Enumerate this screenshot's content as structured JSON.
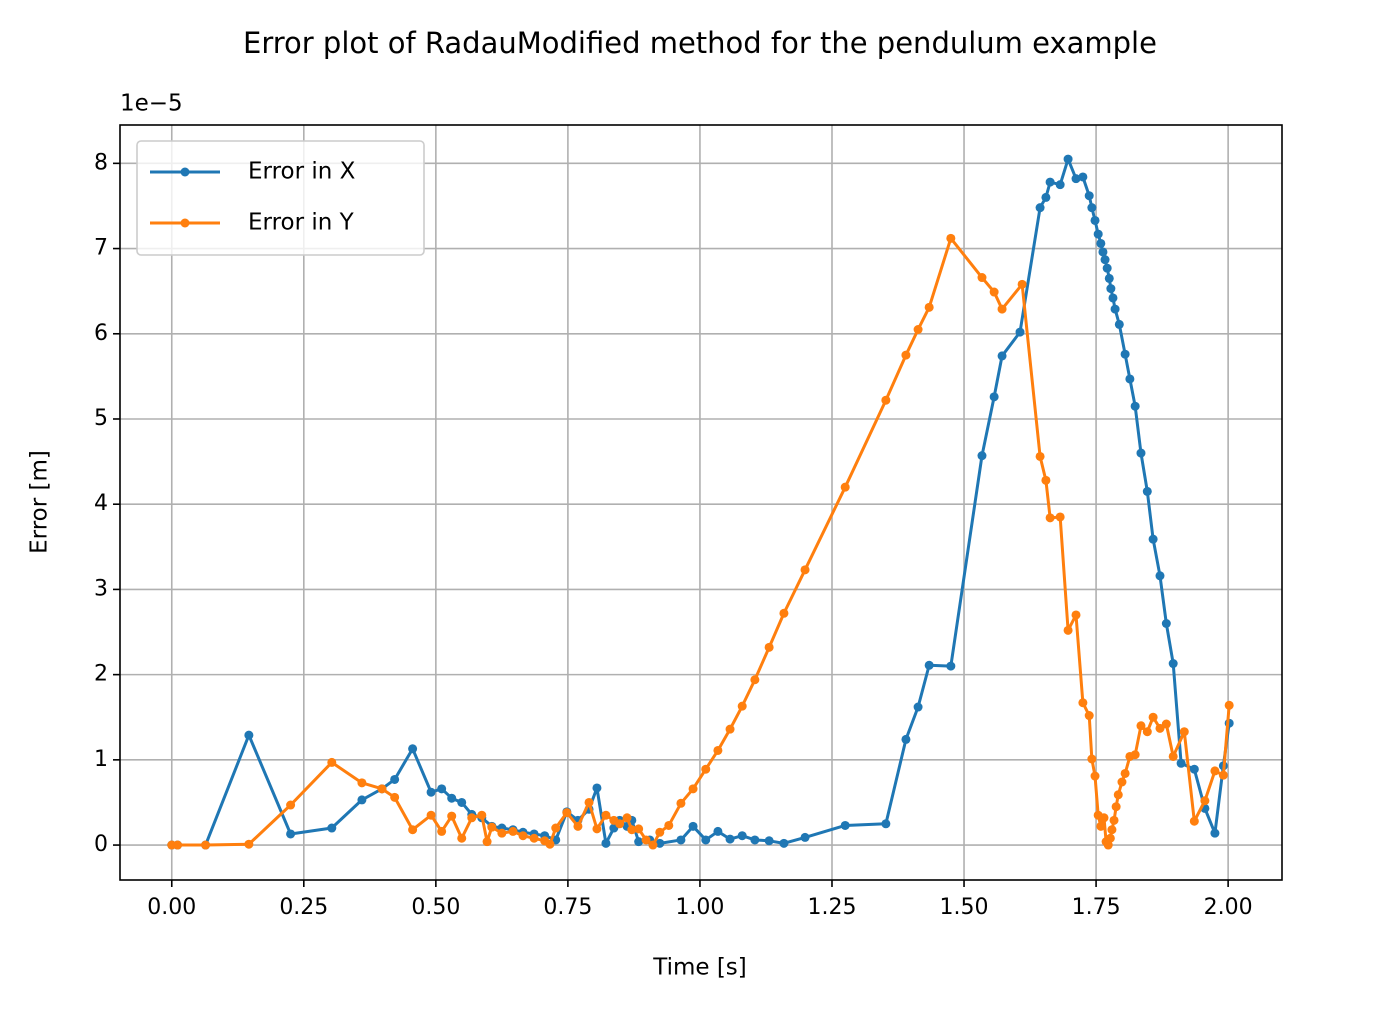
{
  "chart_data": {
    "type": "line",
    "title": "Error plot of RadauModified method for the pendulum example",
    "xlabel": "Time [s]",
    "ylabel": "Error [m]",
    "y_offset_label": "1e−5",
    "xlim": [
      -0.098,
      2.102
    ],
    "ylim": [
      -0.41,
      8.45
    ],
    "xticks": [
      {
        "value": 0,
        "label": "0.00"
      },
      {
        "value": 0.25,
        "label": "0.25"
      },
      {
        "value": 0.5,
        "label": "0.50"
      },
      {
        "value": 0.75,
        "label": "0.75"
      },
      {
        "value": 1,
        "label": "1.00"
      },
      {
        "value": 1.25,
        "label": "1.25"
      },
      {
        "value": 1.5,
        "label": "1.50"
      },
      {
        "value": 1.75,
        "label": "1.75"
      },
      {
        "value": 2,
        "label": "2.00"
      }
    ],
    "yticks": [
      0,
      1,
      2,
      3,
      4,
      5,
      6,
      7,
      8
    ],
    "grid": true,
    "legend": "upper left",
    "series": [
      {
        "name": "Error in X",
        "color": "#1f77b4",
        "x": [
          0,
          0.011,
          0.064,
          0.146,
          0.225,
          0.303,
          0.36,
          0.398,
          0.422,
          0.456,
          0.491,
          0.511,
          0.53,
          0.549,
          0.568,
          0.587,
          0.606,
          0.625,
          0.646,
          0.665,
          0.686,
          0.706,
          0.727,
          0.748,
          0.769,
          0.79,
          0.805,
          0.822,
          0.837,
          0.848,
          0.862,
          0.871,
          0.884,
          0.905,
          0.924,
          0.964,
          0.987,
          1.011,
          1.034,
          1.057,
          1.08,
          1.104,
          1.131,
          1.159,
          1.199,
          1.275,
          1.352,
          1.39,
          1.413,
          1.434,
          1.475,
          1.534,
          1.557,
          1.572,
          1.606,
          1.644,
          1.655,
          1.663,
          1.682,
          1.697,
          1.712,
          1.725,
          1.737,
          1.742,
          1.748,
          1.754,
          1.759,
          1.763,
          1.767,
          1.771,
          1.775,
          1.778,
          1.782,
          1.786,
          1.794,
          1.805,
          1.814,
          1.824,
          1.835,
          1.847,
          1.858,
          1.871,
          1.883,
          1.896,
          1.911,
          1.936,
          1.956,
          1.975,
          1.991,
          2.002
        ],
        "values": [
          0,
          0,
          0,
          1.29,
          0.13,
          0.2,
          0.53,
          0.66,
          0.77,
          1.13,
          0.62,
          0.66,
          0.55,
          0.5,
          0.36,
          0.32,
          0.22,
          0.2,
          0.18,
          0.15,
          0.13,
          0.11,
          0.06,
          0.39,
          0.29,
          0.42,
          0.67,
          0.02,
          0.2,
          0.29,
          0.22,
          0.29,
          0.04,
          0.06,
          0.02,
          0.06,
          0.22,
          0.06,
          0.16,
          0.07,
          0.11,
          0.06,
          0.05,
          0.02,
          0.09,
          0.23,
          0.25,
          1.24,
          1.62,
          2.11,
          2.1,
          4.57,
          5.26,
          5.74,
          6.02,
          7.48,
          7.6,
          7.78,
          7.75,
          8.05,
          7.82,
          7.84,
          7.62,
          7.48,
          7.33,
          7.17,
          7.06,
          6.96,
          6.87,
          6.77,
          6.65,
          6.53,
          6.42,
          6.29,
          6.11,
          5.76,
          5.47,
          5.15,
          4.6,
          4.15,
          3.59,
          3.16,
          2.6,
          2.13,
          0.96,
          0.89,
          0.43,
          0.14,
          0.93,
          1.43
        ]
      },
      {
        "name": "Error in Y",
        "color": "#ff7f0e",
        "x": [
          0,
          0.011,
          0.064,
          0.146,
          0.225,
          0.303,
          0.36,
          0.398,
          0.422,
          0.456,
          0.491,
          0.511,
          0.53,
          0.549,
          0.568,
          0.587,
          0.597,
          0.606,
          0.625,
          0.646,
          0.665,
          0.686,
          0.706,
          0.716,
          0.727,
          0.748,
          0.769,
          0.79,
          0.805,
          0.822,
          0.837,
          0.848,
          0.862,
          0.871,
          0.884,
          0.898,
          0.911,
          0.924,
          0.941,
          0.964,
          0.987,
          1.011,
          1.034,
          1.057,
          1.08,
          1.104,
          1.131,
          1.159,
          1.199,
          1.275,
          1.352,
          1.39,
          1.413,
          1.434,
          1.475,
          1.534,
          1.557,
          1.572,
          1.61,
          1.644,
          1.655,
          1.663,
          1.682,
          1.697,
          1.712,
          1.725,
          1.737,
          1.742,
          1.748,
          1.754,
          1.759,
          1.765,
          1.769,
          1.773,
          1.777,
          1.78,
          1.784,
          1.788,
          1.792,
          1.799,
          1.805,
          1.814,
          1.824,
          1.835,
          1.847,
          1.858,
          1.871,
          1.883,
          1.896,
          1.917,
          1.936,
          1.956,
          1.975,
          1.991,
          2.002
        ],
        "values": [
          0,
          0,
          0,
          0.01,
          0.47,
          0.97,
          0.73,
          0.66,
          0.56,
          0.18,
          0.35,
          0.16,
          0.34,
          0.08,
          0.32,
          0.35,
          0.04,
          0.21,
          0.14,
          0.16,
          0.11,
          0.08,
          0.05,
          0.01,
          0.2,
          0.38,
          0.22,
          0.5,
          0.19,
          0.35,
          0.29,
          0.25,
          0.32,
          0.18,
          0.19,
          0.06,
          0,
          0.15,
          0.23,
          0.49,
          0.66,
          0.89,
          1.11,
          1.36,
          1.63,
          1.94,
          2.32,
          2.72,
          3.23,
          4.2,
          5.22,
          5.75,
          6.05,
          6.31,
          7.12,
          6.66,
          6.49,
          6.29,
          6.58,
          4.56,
          4.28,
          3.84,
          3.85,
          2.52,
          2.7,
          1.67,
          1.52,
          1.01,
          0.81,
          0.35,
          0.22,
          0.32,
          0.04,
          0,
          0.08,
          0.18,
          0.29,
          0.45,
          0.59,
          0.74,
          0.84,
          1.04,
          1.06,
          1.4,
          1.33,
          1.5,
          1.37,
          1.42,
          1.04,
          1.33,
          0.28,
          0.52,
          0.87,
          0.82,
          1.64
        ]
      }
    ]
  }
}
